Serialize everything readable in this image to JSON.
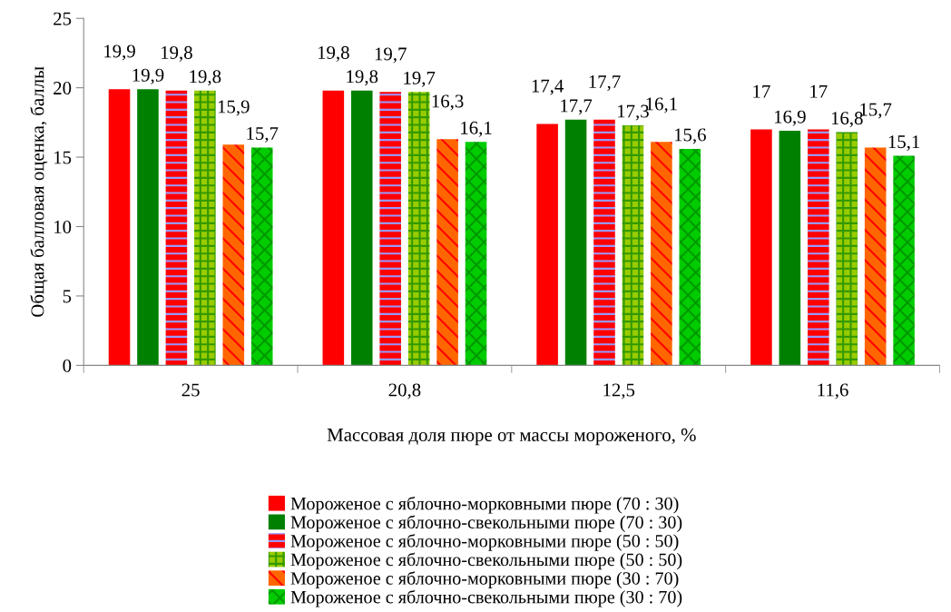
{
  "chart_data": {
    "type": "bar",
    "xlabel": "Массовая доля пюре от массы мороженого, %",
    "ylabel": "Общая балловая оценка, баллы",
    "categories": [
      "25",
      "20,8",
      "12,5",
      "11,6"
    ],
    "ylim": [
      0,
      25
    ],
    "yticks": [
      0,
      5,
      10,
      15,
      20,
      25
    ],
    "grid": false,
    "legend": "bottom",
    "series": [
      {
        "name": "Мороженое с яблочно-морковными пюре (70 : 30)",
        "color": "#ff0000",
        "values": [
          19.9,
          19.8,
          17.4,
          17
        ],
        "value_labels": [
          "19,9",
          "19,8",
          "17,4",
          "17"
        ]
      },
      {
        "name": "Мороженое с яблочно-свекольными пюре (70 : 30)",
        "color": "#008000",
        "values": [
          19.9,
          19.8,
          17.7,
          16.9
        ],
        "value_labels": [
          "19,9",
          "19,8",
          "17,7",
          "16,9"
        ]
      },
      {
        "name": "Мороженое с яблочно-морковными пюре (50 : 50)",
        "color": "#ff0000",
        "values": [
          19.8,
          19.7,
          17.7,
          17
        ],
        "value_labels": [
          "19,8",
          "19,7",
          "17,7",
          "17"
        ]
      },
      {
        "name": "Мороженое с яблочно-свекольными пюре (50 : 50)",
        "color": "#99cc00",
        "values": [
          19.8,
          19.7,
          17.3,
          16.8
        ],
        "value_labels": [
          "19,8",
          "19,7",
          "17,3",
          "16,8"
        ]
      },
      {
        "name": "Мороженое с яблочно-морковными пюре (30 : 70)",
        "color": "#ff6600",
        "values": [
          15.9,
          16.3,
          16.1,
          15.7
        ],
        "value_labels": [
          "15,9",
          "16,3",
          "16,1",
          "15,7"
        ]
      },
      {
        "name": "Мороженое с яблочно-свекольными пюре (30 : 70)",
        "color": "#00cc00",
        "values": [
          15.7,
          16.1,
          15.6,
          15.1
        ],
        "value_labels": [
          "15,7",
          "16,1",
          "15,6",
          "15,1"
        ]
      }
    ]
  }
}
